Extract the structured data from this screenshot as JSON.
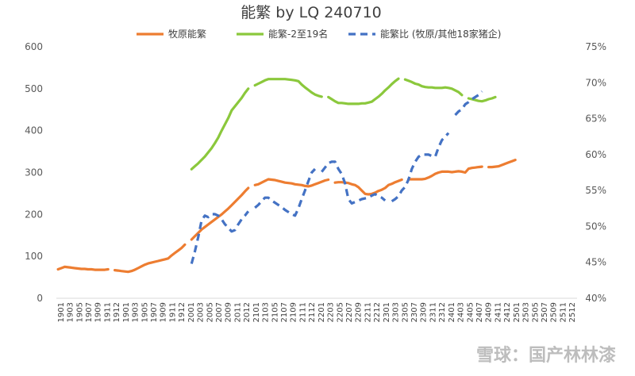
{
  "chart_data": {
    "type": "line",
    "title": "能繁 by LQ 240710",
    "y_left": {
      "ylim": [
        0,
        600
      ],
      "ticks": [
        "0",
        "100",
        "200",
        "300",
        "400",
        "500",
        "600"
      ]
    },
    "y_right": {
      "ylim": [
        40,
        75
      ],
      "ticks": [
        "40%",
        "45%",
        "50%",
        "55%",
        "60%",
        "65%",
        "70%",
        "75%"
      ]
    },
    "x_tick_labels": [
      "1901",
      "1903",
      "1905",
      "1907",
      "1909",
      "1911",
      "1912",
      "1901",
      "1903",
      "1905",
      "1907",
      "1909",
      "1911",
      "1912",
      "2001",
      "2003",
      "2005",
      "2007",
      "2009",
      "2011",
      "2012",
      "2101",
      "2103",
      "2105",
      "2107",
      "2109",
      "2111",
      "2112",
      "2201",
      "2203",
      "2205",
      "2207",
      "2209",
      "2211",
      "2212",
      "2301",
      "2303",
      "2305",
      "2307",
      "2309",
      "2311",
      "2312",
      "2401",
      "2403",
      "2405",
      "2407",
      "2409",
      "2411",
      "2412",
      "2501",
      "2503",
      "2505",
      "2507",
      "2509",
      "2511",
      "2512"
    ],
    "series": [
      {
        "name": "牧原能繁",
        "axis": "left",
        "color": "#ed7d31",
        "dash": "solid",
        "values": [
          69,
          72,
          75,
          74,
          73,
          72,
          71,
          70,
          70,
          69,
          69,
          68,
          68,
          68,
          68,
          69,
          null,
          67,
          66,
          65,
          64,
          63,
          65,
          68,
          72,
          76,
          80,
          83,
          85,
          87,
          89,
          91,
          93,
          95,
          102,
          108,
          114,
          120,
          128,
          null,
          140,
          148,
          156,
          164,
          170,
          176,
          182,
          188,
          194,
          200,
          207,
          214,
          222,
          230,
          238,
          246,
          255,
          263,
          null,
          270,
          272,
          276,
          280,
          284,
          283,
          282,
          280,
          278,
          276,
          275,
          274,
          272,
          271,
          270,
          268,
          267,
          269,
          272,
          275,
          278,
          281,
          283,
          null,
          276,
          277,
          277,
          276,
          275,
          272,
          270,
          265,
          257,
          249,
          248,
          249,
          252,
          256,
          259,
          263,
          270,
          273,
          277,
          280,
          283,
          null,
          284,
          284,
          284,
          284,
          284,
          285,
          288,
          292,
          297,
          300,
          302,
          302,
          302,
          301,
          302,
          303,
          302,
          300,
          309,
          311,
          312,
          313,
          314,
          null,
          313,
          313,
          314,
          315,
          318,
          321,
          324,
          327,
          330,
          null,
          null,
          null,
          null,
          null,
          null,
          null,
          null,
          null,
          null,
          null,
          null,
          null,
          null,
          null,
          null,
          null,
          null
        ]
      },
      {
        "name": "能繁-2至19名",
        "axis": "left",
        "color": "#8bc83c",
        "dash": "solid",
        "values": [
          null,
          null,
          null,
          null,
          null,
          null,
          null,
          null,
          null,
          null,
          null,
          null,
          null,
          null,
          null,
          null,
          null,
          null,
          null,
          null,
          null,
          null,
          null,
          null,
          null,
          null,
          null,
          null,
          null,
          null,
          null,
          null,
          null,
          null,
          null,
          null,
          null,
          null,
          null,
          null,
          308,
          315,
          322,
          330,
          338,
          348,
          358,
          370,
          383,
          400,
          415,
          430,
          448,
          458,
          468,
          478,
          490,
          500,
          null,
          508,
          512,
          516,
          520,
          523,
          523,
          523,
          523,
          523,
          523,
          522,
          521,
          520,
          518,
          510,
          503,
          497,
          491,
          486,
          483,
          481,
          null,
          480,
          475,
          470,
          466,
          466,
          465,
          464,
          464,
          464,
          464,
          465,
          465,
          467,
          469,
          475,
          481,
          488,
          496,
          503,
          511,
          518,
          524,
          null,
          522,
          519,
          516,
          512,
          510,
          506,
          504,
          503,
          503,
          502,
          502,
          502,
          503,
          502,
          500,
          496,
          492,
          485,
          null,
          477,
          475,
          473,
          471,
          470,
          472,
          475,
          477,
          480,
          null,
          null,
          null,
          null,
          null,
          null,
          null,
          null,
          null,
          null,
          null,
          null,
          null,
          null,
          null,
          null,
          null,
          null
        ]
      },
      {
        "name": "能繁比 (牧原/其他18家猪企)",
        "axis": "right",
        "color": "#4472c4",
        "dash": "dashed",
        "values": [
          null,
          null,
          null,
          null,
          null,
          null,
          null,
          null,
          null,
          null,
          null,
          null,
          null,
          null,
          null,
          null,
          null,
          null,
          null,
          null,
          null,
          null,
          null,
          null,
          null,
          null,
          null,
          null,
          null,
          null,
          null,
          null,
          null,
          null,
          null,
          null,
          null,
          null,
          null,
          null,
          44.8,
          46.5,
          48.5,
          50.8,
          51.5,
          51.3,
          51.7,
          51.7,
          51.5,
          51.0,
          50.3,
          49.8,
          49.3,
          49.5,
          50.3,
          51.0,
          51.5,
          52.1,
          null,
          52.6,
          53.0,
          53.5,
          54.0,
          54.0,
          53.6,
          53.3,
          53.0,
          52.7,
          52.3,
          52.0,
          51.7,
          51.5,
          52.5,
          53.8,
          55.0,
          56.3,
          57.5,
          58.0,
          null,
          57.6,
          58.2,
          58.8,
          59.0,
          59.0,
          58.0,
          57.3,
          56.0,
          53.8,
          53.2,
          53.4,
          53.6,
          53.8,
          53.9,
          54.0,
          54.3,
          54.5,
          54.2,
          54.0,
          53.6,
          null,
          53.5,
          53.8,
          54.2,
          55.0,
          55.5,
          56.5,
          58.0,
          59.0,
          59.7,
          60.0,
          60.0,
          60.0,
          59.8,
          59.7,
          61.0,
          62.0,
          62.5,
          63.0,
          null,
          65.5,
          66.0,
          66.3,
          67.0,
          67.3,
          67.7,
          68.0,
          68.3,
          68.8,
          null,
          null,
          null,
          null,
          null,
          null,
          null,
          null,
          null,
          null,
          null,
          null,
          null,
          null,
          null,
          null,
          null,
          null
        ]
      }
    ],
    "legend": "top"
  },
  "watermark": "雪球：国产林林漆"
}
